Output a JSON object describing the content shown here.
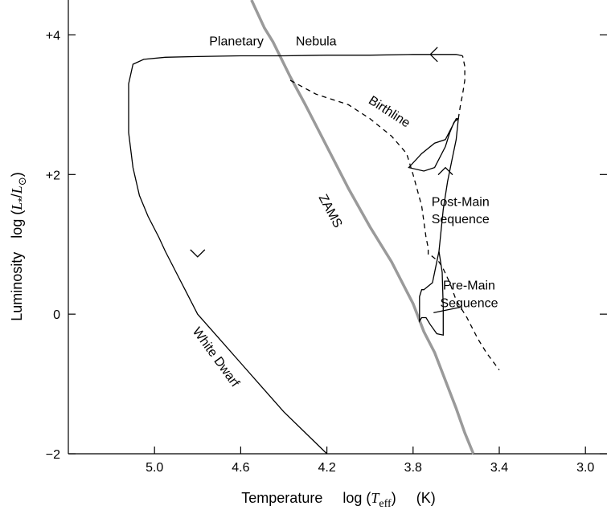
{
  "chart_data": {
    "type": "line",
    "title": "",
    "xlabel": {
      "quantity": "Temperature",
      "formula_prefix": "log (",
      "symbol": "T",
      "subscript": "eff",
      "formula_suffix": ")",
      "unit": "(K)"
    },
    "ylabel": {
      "quantity": "Luminosity",
      "formula_prefix": "log (",
      "symbol": "L",
      "subscript": "*",
      "separator": "/",
      "symbol2": "L",
      "subscript2": "⊙",
      "formula_suffix": ")"
    },
    "xlim": [
      5.4,
      2.9
    ],
    "ylim": [
      -2,
      4.5
    ],
    "x_reversed": true,
    "x_ticks": [
      5.0,
      4.6,
      4.2,
      3.8,
      3.4,
      3.0
    ],
    "x_tick_labels": [
      "5.0",
      "4.6",
      "4.2",
      "3.8",
      "3.4",
      "3.0"
    ],
    "y_ticks": [
      4,
      2,
      0,
      -2
    ],
    "y_tick_labels": [
      "+4",
      "+2",
      "0",
      "−2"
    ],
    "series": [
      {
        "style": "solid-gray",
        "x": [
          4.55,
          4.49,
          4.45,
          4.41,
          4.37,
          4.3,
          4.2,
          4.1,
          4.0,
          3.9,
          3.8,
          3.75,
          3.7,
          3.65,
          3.6,
          3.56,
          3.52
        ],
        "y": [
          4.5,
          4.1,
          3.9,
          3.65,
          3.4,
          3.0,
          2.4,
          1.8,
          1.25,
          0.75,
          0.15,
          -0.25,
          -0.55,
          -0.95,
          -1.35,
          -1.7,
          -2.0
        ]
      },
      {
        "style": "dashed",
        "x": [
          4.37,
          4.25,
          4.1,
          4.0,
          3.9,
          3.83,
          3.8,
          3.76,
          3.74,
          3.73,
          3.73,
          3.72,
          3.7,
          3.68,
          3.66,
          3.63,
          3.6,
          3.55,
          3.5,
          3.46,
          3.4
        ],
        "y": [
          3.35,
          3.15,
          3.0,
          2.8,
          2.55,
          2.3,
          2.0,
          1.55,
          1.1,
          0.95,
          0.85,
          0.85,
          0.8,
          0.75,
          0.65,
          0.45,
          0.2,
          -0.05,
          -0.35,
          -0.55,
          -0.8
        ]
      },
      {
        "style": "solid",
        "x": [
          3.68,
          3.665,
          3.66,
          3.66,
          3.69,
          3.72,
          3.74,
          3.76,
          3.77,
          3.77,
          3.76,
          3.75,
          3.71,
          3.68,
          3.66,
          3.64,
          3.62,
          3.6,
          3.59,
          3.61,
          3.63,
          3.65,
          3.7,
          3.75,
          3.82,
          3.76,
          3.7,
          3.65,
          3.6,
          3.59
        ],
        "y": [
          0.9,
          0.6,
          0.1,
          -0.3,
          -0.28,
          -0.15,
          -0.05,
          -0.05,
          -0.1,
          0.25,
          0.35,
          0.35,
          0.45,
          0.9,
          1.5,
          1.9,
          2.2,
          2.5,
          2.8,
          2.75,
          2.6,
          2.4,
          2.1,
          2.05,
          2.1,
          2.3,
          2.45,
          2.5,
          2.8,
          2.8
        ]
      },
      {
        "style": "dashed",
        "x": [
          3.59,
          3.58,
          3.57,
          3.56,
          3.56,
          3.57
        ],
        "y": [
          2.8,
          3.0,
          3.15,
          3.35,
          3.55,
          3.7
        ]
      },
      {
        "style": "solid",
        "x": [
          3.57,
          3.6,
          3.8,
          4.0,
          4.2,
          4.4,
          4.6,
          4.8,
          4.95,
          5.05,
          5.1,
          5.12,
          5.12,
          5.1,
          5.07,
          5.03,
          4.98,
          4.95,
          4.9,
          4.85,
          4.8,
          4.7,
          4.6,
          4.5,
          4.4,
          4.3,
          4.2
        ],
        "y": [
          3.7,
          3.72,
          3.72,
          3.71,
          3.71,
          3.7,
          3.7,
          3.69,
          3.68,
          3.65,
          3.58,
          3.3,
          2.6,
          2.1,
          1.7,
          1.4,
          1.1,
          0.9,
          0.6,
          0.3,
          0.0,
          -0.35,
          -0.7,
          -1.05,
          -1.4,
          -1.7,
          -2.0
        ]
      }
    ],
    "annotations": [
      {
        "text": "Planetary",
        "x": 4.62,
        "y": 3.85
      },
      {
        "text": "Nebula",
        "x": 4.25,
        "y": 3.85
      },
      {
        "text": "Birthline",
        "x": 3.92,
        "y": 2.85,
        "rotation": 33
      },
      {
        "text": "ZAMS",
        "x": 4.2,
        "y": 1.45,
        "rotation": 62
      },
      {
        "text": "Post-Main",
        "x": 3.58,
        "y": 1.55
      },
      {
        "text": "Sequence",
        "x": 3.58,
        "y": 1.3
      },
      {
        "text": "Pre-Main",
        "x": 3.54,
        "y": 0.35
      },
      {
        "text": "Sequence",
        "x": 3.54,
        "y": 0.1
      },
      {
        "text": "White  Dwarf",
        "x": 4.73,
        "y": -0.65,
        "rotation": 54
      }
    ],
    "grid": false,
    "legend": "none"
  }
}
